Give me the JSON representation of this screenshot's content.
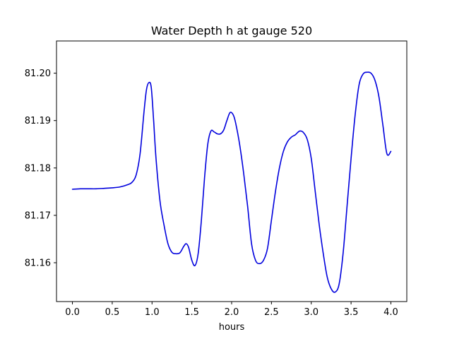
{
  "chart_data": {
    "type": "line",
    "title": "Water Depth h at gauge 520",
    "xlabel": "hours",
    "ylabel": "",
    "xlim": [
      -0.2,
      4.2
    ],
    "ylim": [
      81.1518,
      81.2068
    ],
    "xticks": [
      {
        "value": 0.0,
        "label": "0.0"
      },
      {
        "value": 0.5,
        "label": "0.5"
      },
      {
        "value": 1.0,
        "label": "1.0"
      },
      {
        "value": 1.5,
        "label": "1.5"
      },
      {
        "value": 2.0,
        "label": "2.0"
      },
      {
        "value": 2.5,
        "label": "2.5"
      },
      {
        "value": 3.0,
        "label": "3.0"
      },
      {
        "value": 3.5,
        "label": "3.5"
      },
      {
        "value": 4.0,
        "label": "4.0"
      }
    ],
    "yticks": [
      {
        "value": 81.16,
        "label": "81.16"
      },
      {
        "value": 81.17,
        "label": "81.17"
      },
      {
        "value": 81.18,
        "label": "81.18"
      },
      {
        "value": 81.19,
        "label": "81.19"
      },
      {
        "value": 81.2,
        "label": "81.20"
      }
    ],
    "grid": false,
    "series": [
      {
        "color": "#0000dd",
        "x": [
          0.0,
          0.1,
          0.2,
          0.3,
          0.4,
          0.5,
          0.6,
          0.7,
          0.75,
          0.8,
          0.85,
          0.9,
          0.93,
          0.96,
          0.99,
          1.02,
          1.05,
          1.1,
          1.15,
          1.2,
          1.25,
          1.3,
          1.35,
          1.4,
          1.43,
          1.46,
          1.5,
          1.54,
          1.58,
          1.62,
          1.66,
          1.7,
          1.74,
          1.78,
          1.82,
          1.86,
          1.9,
          1.94,
          1.98,
          2.02,
          2.05,
          2.1,
          2.15,
          2.2,
          2.25,
          2.3,
          2.35,
          2.4,
          2.45,
          2.5,
          2.55,
          2.6,
          2.65,
          2.7,
          2.75,
          2.8,
          2.83,
          2.86,
          2.9,
          2.95,
          3.0,
          3.05,
          3.1,
          3.15,
          3.2,
          3.25,
          3.3,
          3.35,
          3.4,
          3.45,
          3.5,
          3.55,
          3.6,
          3.65,
          3.7,
          3.75,
          3.8,
          3.85,
          3.9,
          3.95,
          4.0
        ],
        "y": [
          81.1755,
          81.1756,
          81.1756,
          81.1756,
          81.1757,
          81.1758,
          81.176,
          81.1765,
          81.177,
          81.1785,
          81.183,
          81.192,
          81.1965,
          81.198,
          81.197,
          81.19,
          81.182,
          81.173,
          81.168,
          81.164,
          81.1622,
          81.1619,
          81.1621,
          81.1635,
          81.164,
          81.1632,
          81.1605,
          81.1594,
          81.162,
          81.169,
          81.178,
          81.185,
          81.1878,
          81.1876,
          81.1872,
          81.1872,
          81.188,
          81.19,
          81.1917,
          81.1912,
          81.1895,
          81.185,
          81.179,
          81.172,
          81.164,
          81.1605,
          81.1598,
          81.1605,
          81.163,
          81.169,
          81.175,
          81.18,
          81.1835,
          81.1855,
          81.1865,
          81.187,
          81.1875,
          81.1878,
          81.1875,
          81.186,
          81.182,
          81.175,
          81.168,
          81.162,
          81.157,
          81.1545,
          81.1538,
          81.1555,
          81.162,
          81.172,
          81.182,
          81.191,
          81.1975,
          81.1998,
          81.2002,
          81.2,
          81.1985,
          81.195,
          81.189,
          81.183,
          81.1835
        ]
      }
    ]
  }
}
